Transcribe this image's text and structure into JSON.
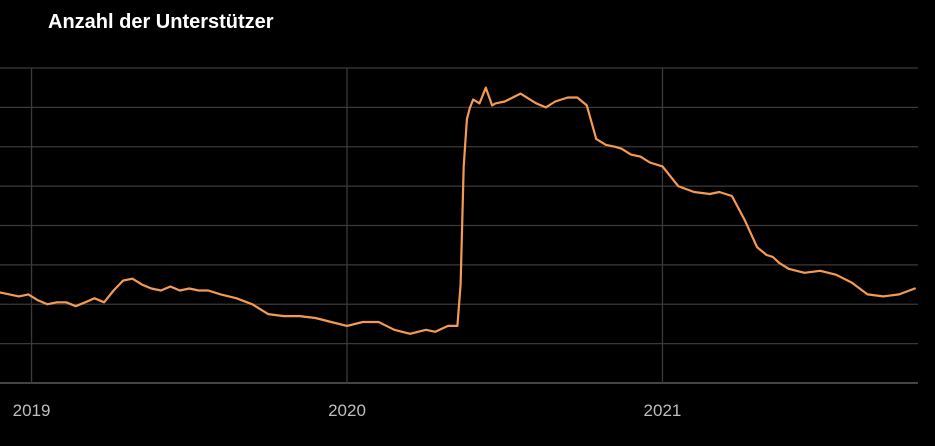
{
  "chart_data": {
    "type": "line",
    "title": "Anzahl der Unterstützer",
    "xlabel": "",
    "ylabel": "",
    "x_tick_labels": [
      "2019",
      "2020",
      "2021"
    ],
    "x_ticks": [
      2019.0,
      2020.0,
      2021.0
    ],
    "xlim": [
      2018.9,
      2021.81
    ],
    "ylim": [
      0,
      8
    ],
    "y_gridlines": [
      0,
      1,
      2,
      3,
      4,
      5,
      6,
      7,
      8
    ],
    "y_tick_labels_shown": false,
    "grid": true,
    "legend": "none",
    "line_color": "#F59A52",
    "background_color": "#000000",
    "grid_color": "#3a3a3a",
    "series": [
      {
        "x": [
          2018.9,
          2018.93,
          2018.96,
          2018.99,
          2019.02,
          2019.05,
          2019.08,
          2019.11,
          2019.14,
          2019.17,
          2019.2,
          2019.23,
          2019.26,
          2019.29,
          2019.32,
          2019.35,
          2019.38,
          2019.41,
          2019.44,
          2019.47,
          2019.5,
          2019.53,
          2019.56,
          2019.6,
          2019.65,
          2019.7,
          2019.75,
          2019.8,
          2019.85,
          2019.9,
          2019.95,
          2020.0,
          2020.05,
          2020.1,
          2020.15,
          2020.2,
          2020.25,
          2020.28,
          2020.32,
          2020.35,
          2020.36,
          2020.37,
          2020.38,
          2020.39,
          2020.4,
          2020.42,
          2020.44,
          2020.46,
          2020.47,
          2020.5,
          2020.55,
          2020.6,
          2020.63,
          2020.66,
          2020.7,
          2020.73,
          2020.76,
          2020.79,
          2020.82,
          2020.85,
          2020.87,
          2020.9,
          2020.93,
          2020.96,
          2021.0,
          2021.05,
          2021.1,
          2021.15,
          2021.18,
          2021.22,
          2021.26,
          2021.3,
          2021.33,
          2021.35,
          2021.37,
          2021.4,
          2021.45,
          2021.5,
          2021.55,
          2021.6,
          2021.65,
          2021.7,
          2021.75,
          2021.8
        ],
        "y": [
          2.3,
          2.25,
          2.2,
          2.25,
          2.1,
          2.0,
          2.05,
          2.05,
          1.95,
          2.05,
          2.15,
          2.05,
          2.35,
          2.6,
          2.65,
          2.5,
          2.4,
          2.35,
          2.45,
          2.35,
          2.4,
          2.35,
          2.35,
          2.25,
          2.15,
          2.0,
          1.75,
          1.7,
          1.7,
          1.65,
          1.55,
          1.45,
          1.55,
          1.55,
          1.35,
          1.25,
          1.35,
          1.3,
          1.45,
          1.45,
          2.5,
          5.5,
          6.7,
          7.0,
          7.2,
          7.1,
          7.5,
          7.05,
          7.1,
          7.15,
          7.35,
          7.1,
          7.0,
          7.15,
          7.25,
          7.25,
          7.05,
          6.2,
          6.05,
          6.0,
          5.95,
          5.8,
          5.75,
          5.6,
          5.5,
          5.0,
          4.85,
          4.8,
          4.85,
          4.75,
          4.15,
          3.45,
          3.25,
          3.2,
          3.05,
          2.9,
          2.8,
          2.85,
          2.75,
          2.55,
          2.25,
          2.2,
          2.25,
          2.4
        ]
      }
    ]
  }
}
